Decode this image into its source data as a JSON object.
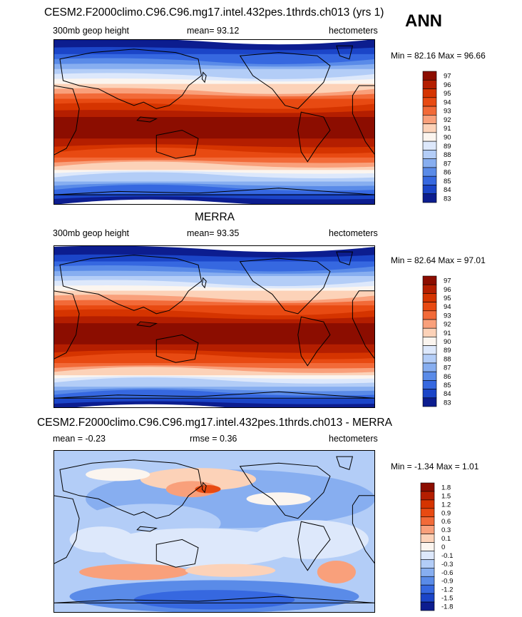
{
  "season": "ANN",
  "chart_data": [
    {
      "type": "heatmap",
      "title": "CESM2.F2000climo.C96.C96.mg17.intel.432pes.1thrds.ch013 (yrs 1)",
      "left_label": "300mb geop height",
      "center_label": "mean=  93.12",
      "right_label": "hectometers",
      "stats": "Min =  82.16 Max =  96.66",
      "mean": 93.12,
      "min": 82.16,
      "max": 96.66,
      "units": "hectometers",
      "colorbar": {
        "levels": [
          "97",
          "96",
          "95",
          "94",
          "93",
          "92",
          "91",
          "90",
          "89",
          "88",
          "87",
          "86",
          "85",
          "84",
          "83"
        ],
        "colors": [
          "#8c0d00",
          "#b41e00",
          "#d53400",
          "#e84a12",
          "#f26a38",
          "#f9a07b",
          "#fcd2b8",
          "#fbf5ef",
          "#dde8fb",
          "#b3cdf7",
          "#87aef0",
          "#5a8be8",
          "#3668e0",
          "#1b45c8",
          "#0c1d8f"
        ]
      }
    },
    {
      "type": "heatmap",
      "title": "MERRA",
      "left_label": "300mb geop height",
      "center_label": "mean=  93.35",
      "right_label": "hectometers",
      "stats": "Min =  82.64 Max =  97.01",
      "mean": 93.35,
      "min": 82.64,
      "max": 97.01,
      "units": "hectometers",
      "colorbar": {
        "levels": [
          "97",
          "96",
          "95",
          "94",
          "93",
          "92",
          "91",
          "90",
          "89",
          "88",
          "87",
          "86",
          "85",
          "84",
          "83"
        ],
        "colors": [
          "#8c0d00",
          "#b41e00",
          "#d53400",
          "#e84a12",
          "#f26a38",
          "#f9a07b",
          "#fcd2b8",
          "#fbf5ef",
          "#dde8fb",
          "#b3cdf7",
          "#87aef0",
          "#5a8be8",
          "#3668e0",
          "#1b45c8",
          "#0c1d8f"
        ]
      }
    },
    {
      "type": "heatmap",
      "title": "CESM2.F2000climo.C96.C96.mg17.intel.432pes.1thrds.ch013 - MERRA",
      "left_label": "mean =  -0.23",
      "center_label": "rmse =   0.36",
      "right_label": "hectometers",
      "stats": "Min =  -1.34 Max =   1.01",
      "mean": -0.23,
      "rmse": 0.36,
      "min": -1.34,
      "max": 1.01,
      "units": "hectometers",
      "colorbar": {
        "levels": [
          "1.8",
          "1.5",
          "1.2",
          "0.9",
          "0.6",
          "0.3",
          "0.1",
          "0",
          "-0.1",
          "-0.3",
          "-0.6",
          "-0.9",
          "-1.2",
          "-1.5",
          "-1.8"
        ],
        "colors": [
          "#8c0d00",
          "#b41e00",
          "#d53400",
          "#e84a12",
          "#f26a38",
          "#f9a07b",
          "#fcd2b8",
          "#fbf5ef",
          "#dde8fb",
          "#b3cdf7",
          "#87aef0",
          "#5a8be8",
          "#3668e0",
          "#1b45c8",
          "#0c1d8f"
        ]
      }
    }
  ]
}
